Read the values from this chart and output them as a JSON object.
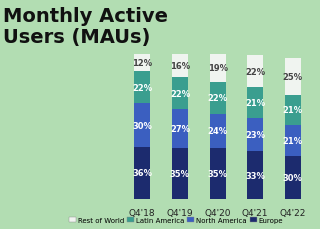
{
  "title": "Monthly Active\nUsers (MAUs)",
  "categories": [
    "Q4'18",
    "Q4'19",
    "Q4'20",
    "Q4'21",
    "Q4'22"
  ],
  "segments": {
    "Europe": [
      36,
      35,
      35,
      33,
      30
    ],
    "North America": [
      30,
      27,
      24,
      23,
      21
    ],
    "Latin America": [
      22,
      22,
      22,
      21,
      21
    ],
    "Rest of World": [
      12,
      16,
      19,
      22,
      25
    ]
  },
  "colors": {
    "Europe": "#1c2b6e",
    "North America": "#3b5fc0",
    "Latin America": "#3a9e8f",
    "Rest of World": "#f0f4f0"
  },
  "text_colors": {
    "Europe": "#ffffff",
    "North America": "#ffffff",
    "Latin America": "#ffffff",
    "Rest of World": "#444444"
  },
  "background_color": "#b2ddb2",
  "title_color": "#111111",
  "title_fontsize": 14,
  "bar_width": 0.42,
  "legend_labels": [
    "Rest of World",
    "Latin America",
    "North America",
    "Europe"
  ]
}
